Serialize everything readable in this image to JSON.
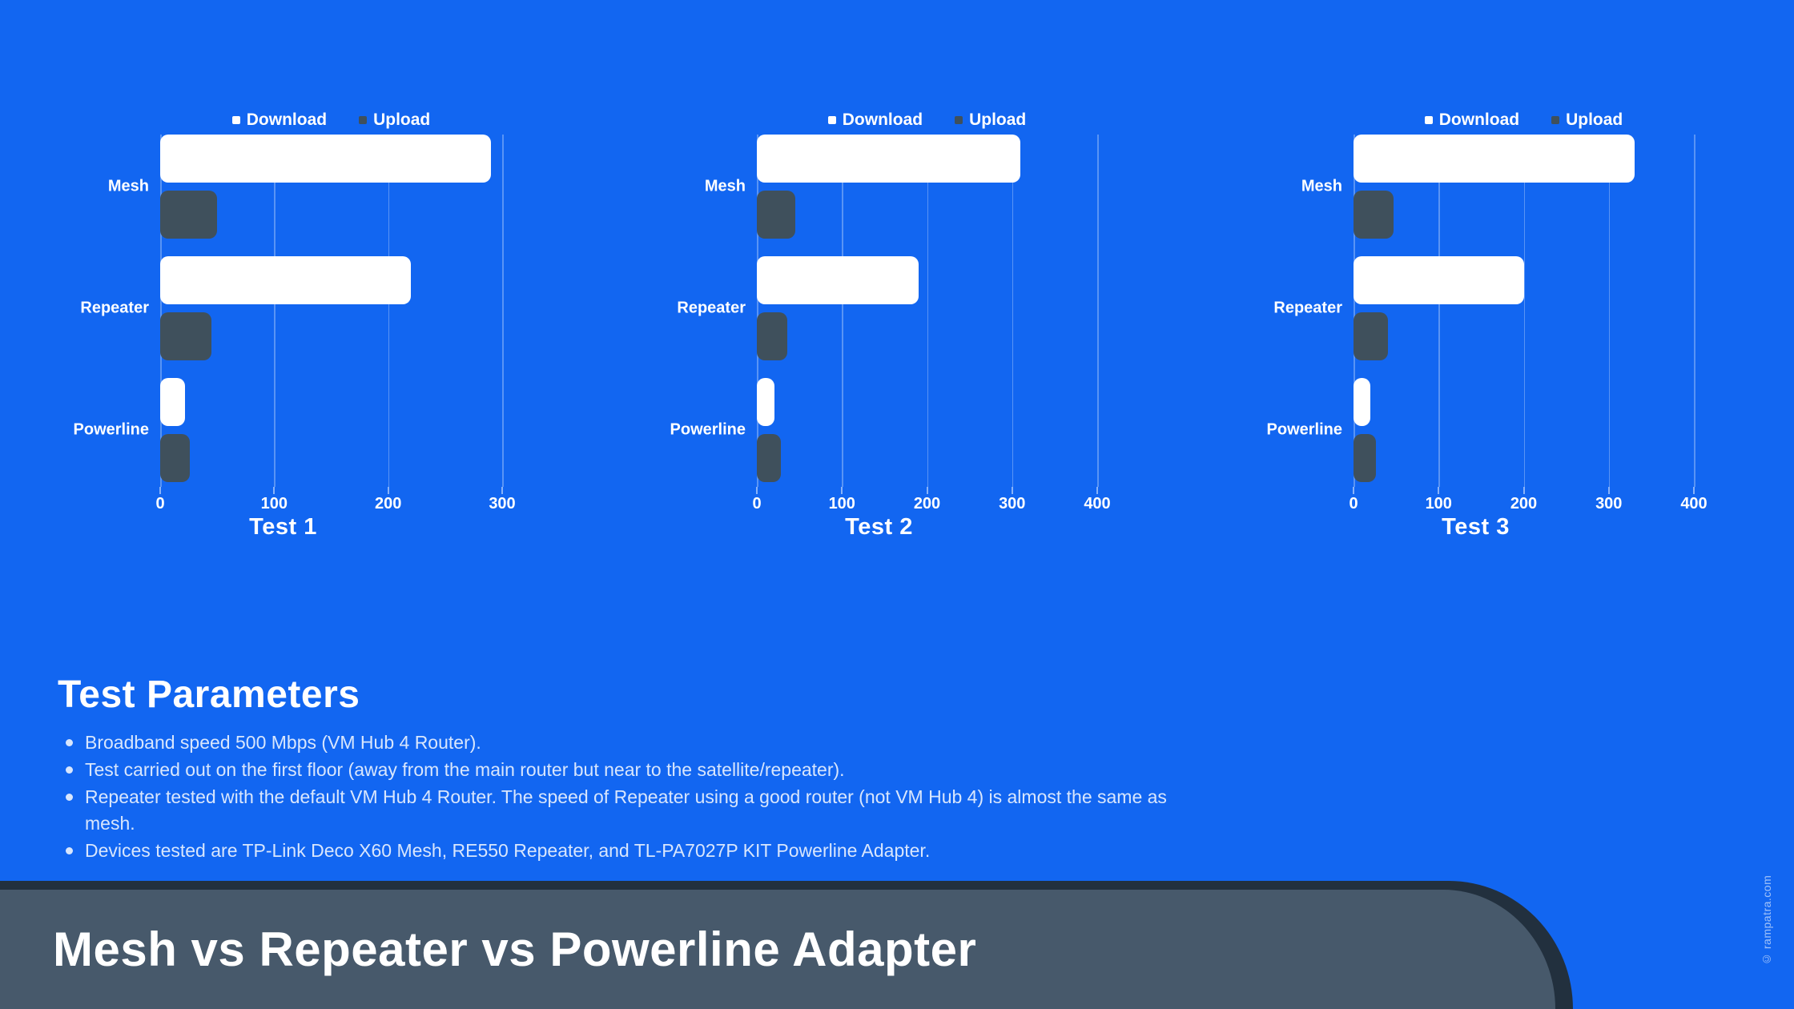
{
  "colors": {
    "background": "#1266F1",
    "download": "#FFFFFF",
    "upload": "#3F505C",
    "banner_panel": "#47596B",
    "banner_outline": "#22303E"
  },
  "chart_data": [
    {
      "type": "bar",
      "orientation": "horizontal",
      "title": "Test 1",
      "categories": [
        "Mesh",
        "Repeater",
        "Powerline"
      ],
      "series": [
        {
          "name": "Download",
          "values": [
            290,
            220,
            22
          ]
        },
        {
          "name": "Upload",
          "values": [
            50,
            45,
            26
          ]
        }
      ],
      "xticks": [
        0,
        100,
        200,
        300
      ],
      "xlim": [
        0,
        300
      ],
      "grid": true,
      "legend_position": "top"
    },
    {
      "type": "bar",
      "orientation": "horizontal",
      "title": "Test 2",
      "categories": [
        "Mesh",
        "Repeater",
        "Powerline"
      ],
      "series": [
        {
          "name": "Download",
          "values": [
            310,
            190,
            21
          ]
        },
        {
          "name": "Upload",
          "values": [
            45,
            36,
            28
          ]
        }
      ],
      "xticks": [
        0,
        100,
        200,
        300,
        400
      ],
      "xlim": [
        0,
        400
      ],
      "grid": true,
      "legend_position": "top"
    },
    {
      "type": "bar",
      "orientation": "horizontal",
      "title": "Test 3",
      "categories": [
        "Mesh",
        "Repeater",
        "Powerline"
      ],
      "series": [
        {
          "name": "Download",
          "values": [
            330,
            200,
            20
          ]
        },
        {
          "name": "Upload",
          "values": [
            47,
            40,
            26
          ]
        }
      ],
      "xticks": [
        0,
        100,
        200,
        300,
        400
      ],
      "xlim": [
        0,
        400
      ],
      "grid": true,
      "legend_position": "top"
    }
  ],
  "parameters": {
    "heading": "Test Parameters",
    "bullets": [
      "Broadband speed 500 Mbps (VM Hub 4 Router).",
      "Test carried out on the first floor (away from the main router but near to the satellite/repeater).",
      "Repeater tested with the default VM Hub 4 Router. The speed of Repeater using a good router (not VM Hub 4) is almost the same as mesh.",
      "Devices tested are TP-Link Deco X60 Mesh, RE550 Repeater, and TL-PA7027P KIT Powerline Adapter."
    ]
  },
  "banner": {
    "title": "Mesh vs Repeater vs Powerline Adapter"
  },
  "watermark": "© rampatra.com"
}
